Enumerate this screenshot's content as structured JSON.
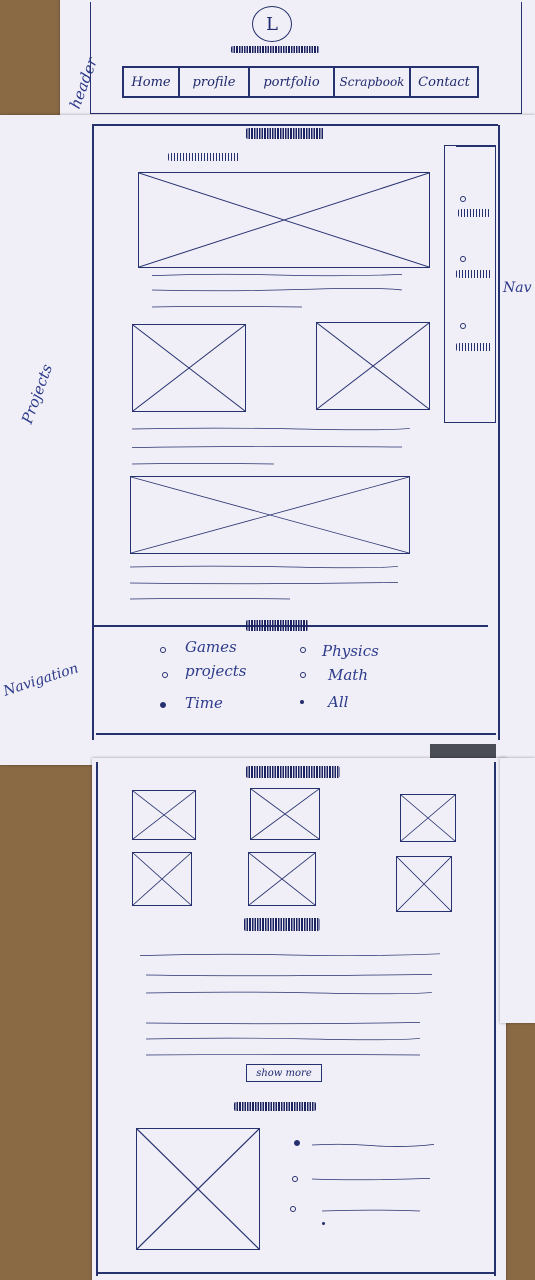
{
  "header": {
    "side_label": "header",
    "logo_letter": "L",
    "nav": [
      "Home",
      "profile",
      "portfolio",
      "Scrapbook",
      "Contact"
    ]
  },
  "projects": {
    "side_label": "Projects",
    "nav_label": "Nav"
  },
  "navigation": {
    "side_label": "Navigation",
    "links_left": [
      "Games",
      "projects",
      "Time"
    ],
    "links_right": [
      "Physics",
      "Math",
      "All"
    ]
  },
  "gallery": {
    "show_more": "show more"
  }
}
